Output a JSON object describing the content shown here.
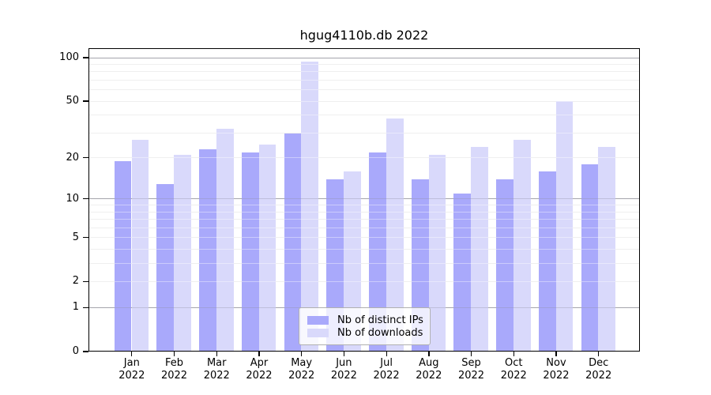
{
  "chart_data": {
    "type": "bar",
    "title": "hgug4110b.db 2022",
    "categories": [
      "Jan",
      "Feb",
      "Mar",
      "Apr",
      "May",
      "Jun",
      "Jul",
      "Aug",
      "Sep",
      "Oct",
      "Nov",
      "Dec"
    ],
    "year": "2022",
    "series": [
      {
        "name": "Nb of distinct IPs",
        "color": "#a9a9fb",
        "values": [
          19,
          13,
          23,
          22,
          30,
          14,
          22,
          14,
          11,
          14,
          16,
          18
        ]
      },
      {
        "name": "Nb of downloads",
        "color": "#d9d9fb",
        "values": [
          27,
          21,
          32,
          25,
          94,
          16,
          38,
          21,
          24,
          27,
          50,
          24
        ]
      }
    ],
    "y_axis": {
      "scale": "log10(1+x)",
      "tick_values": [
        0,
        1,
        2,
        5,
        10,
        20,
        50,
        100
      ],
      "major_gridlines": [
        1,
        10,
        100
      ],
      "minor_gridlines": [
        2,
        3,
        4,
        5,
        6,
        7,
        8,
        9,
        20,
        30,
        40,
        50,
        60,
        70,
        80,
        90
      ]
    },
    "grid": true,
    "legend_position": "inside-bottom-center",
    "colors": {
      "background": "#ffffff",
      "axis": "#000000",
      "minor_grid": "#ececec",
      "major_grid": "#b3b3b3"
    }
  }
}
